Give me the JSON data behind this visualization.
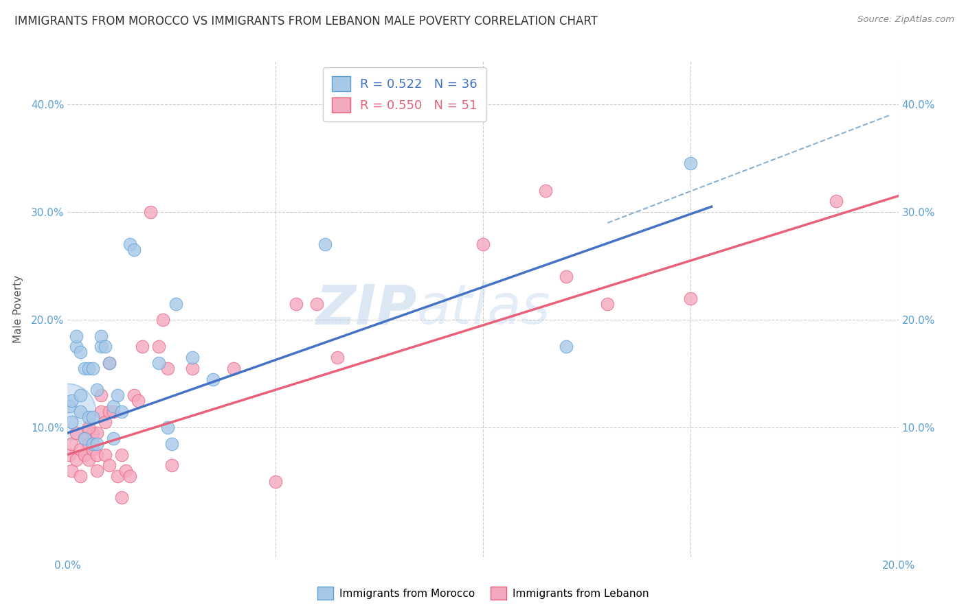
{
  "title": "IMMIGRANTS FROM MOROCCO VS IMMIGRANTS FROM LEBANON MALE POVERTY CORRELATION CHART",
  "source": "Source: ZipAtlas.com",
  "ylabel": "Male Poverty",
  "xlim": [
    0.0,
    0.2
  ],
  "ylim": [
    -0.02,
    0.44
  ],
  "morocco_color": "#a8c8e8",
  "morocco_edge": "#5a9fd4",
  "lebanon_color": "#f4a8c0",
  "lebanon_edge": "#e8607a",
  "legend_morocco_R": "0.522",
  "legend_morocco_N": "36",
  "legend_lebanon_R": "0.550",
  "legend_lebanon_N": "51",
  "morocco_scatter_x": [
    0.0005,
    0.001,
    0.001,
    0.002,
    0.002,
    0.003,
    0.003,
    0.003,
    0.004,
    0.005,
    0.005,
    0.006,
    0.006,
    0.007,
    0.008,
    0.008,
    0.009,
    0.01,
    0.011,
    0.012,
    0.013,
    0.015,
    0.016,
    0.022,
    0.024,
    0.026,
    0.03,
    0.062,
    0.12,
    0.15,
    0.004,
    0.006,
    0.007,
    0.011,
    0.025,
    0.035
  ],
  "morocco_scatter_y": [
    0.12,
    0.125,
    0.105,
    0.175,
    0.185,
    0.13,
    0.115,
    0.17,
    0.155,
    0.155,
    0.11,
    0.155,
    0.11,
    0.135,
    0.175,
    0.185,
    0.175,
    0.16,
    0.12,
    0.13,
    0.115,
    0.27,
    0.265,
    0.16,
    0.1,
    0.215,
    0.165,
    0.27,
    0.175,
    0.345,
    0.09,
    0.085,
    0.085,
    0.09,
    0.085,
    0.145
  ],
  "lebanon_scatter_x": [
    0.0005,
    0.001,
    0.001,
    0.002,
    0.002,
    0.003,
    0.003,
    0.004,
    0.004,
    0.005,
    0.005,
    0.006,
    0.006,
    0.007,
    0.007,
    0.008,
    0.008,
    0.009,
    0.009,
    0.01,
    0.01,
    0.011,
    0.012,
    0.013,
    0.014,
    0.015,
    0.016,
    0.017,
    0.018,
    0.02,
    0.022,
    0.023,
    0.024,
    0.025,
    0.03,
    0.04,
    0.05,
    0.055,
    0.06,
    0.065,
    0.09,
    0.1,
    0.115,
    0.12,
    0.13,
    0.15,
    0.185,
    0.005,
    0.007,
    0.01,
    0.013
  ],
  "lebanon_scatter_y": [
    0.075,
    0.085,
    0.06,
    0.07,
    0.095,
    0.08,
    0.055,
    0.09,
    0.075,
    0.085,
    0.07,
    0.095,
    0.08,
    0.095,
    0.075,
    0.115,
    0.13,
    0.105,
    0.075,
    0.115,
    0.065,
    0.115,
    0.055,
    0.035,
    0.06,
    0.055,
    0.13,
    0.125,
    0.175,
    0.3,
    0.175,
    0.2,
    0.155,
    0.065,
    0.155,
    0.155,
    0.05,
    0.215,
    0.215,
    0.165,
    0.395,
    0.27,
    0.32,
    0.24,
    0.215,
    0.22,
    0.31,
    0.1,
    0.06,
    0.16,
    0.075
  ],
  "morocco_trend_x": [
    0.0,
    0.155
  ],
  "morocco_trend_y": [
    0.095,
    0.305
  ],
  "lebanon_trend_x": [
    0.0,
    0.2
  ],
  "lebanon_trend_y": [
    0.075,
    0.315
  ],
  "dashed_line_x": [
    0.13,
    0.198
  ],
  "dashed_line_y": [
    0.29,
    0.39
  ],
  "morocco_big_x": [
    0.0
  ],
  "morocco_big_y": [
    0.115
  ],
  "watermark_zip": "ZIP",
  "watermark_atlas": "atlas",
  "background_color": "#ffffff",
  "grid_color": "#cccccc",
  "title_color": "#333333",
  "title_fontsize": 12.0,
  "tick_color": "#5a9fd4"
}
